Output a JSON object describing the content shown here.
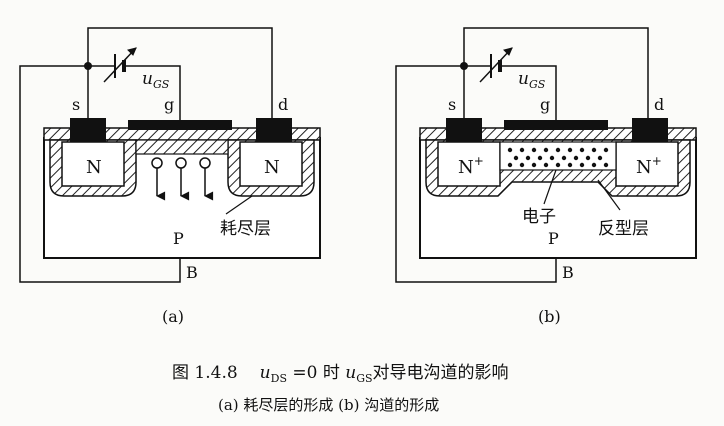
{
  "figure": {
    "number": "图 1.4.8",
    "caption_u_ds": "u",
    "caption_ds_sub": "DS",
    "caption_mid": " =0 时 ",
    "caption_u_gs": "u",
    "caption_gs_sub": "GS",
    "caption_tail": "对导电沟道的影响",
    "subcaption": "(a) 耗尽层的形成   (b) 沟道的形成"
  },
  "panel_a": {
    "tag": "(a)",
    "source": "s",
    "gate": "g",
    "drain": "d",
    "source_region": "N",
    "drain_region": "N",
    "substrate": "P",
    "bulk": "B",
    "depletion_label": "耗尽层",
    "voltage_u": "u",
    "voltage_sub": "GS"
  },
  "panel_b": {
    "tag": "(b)",
    "source": "s",
    "gate": "g",
    "drain": "d",
    "source_region": "N",
    "drain_region": "N",
    "doping_sup": "+",
    "substrate": "P",
    "bulk": "B",
    "electron_label": "电子",
    "inversion_label": "反型层",
    "voltage_u": "u",
    "voltage_sub": "GS"
  }
}
